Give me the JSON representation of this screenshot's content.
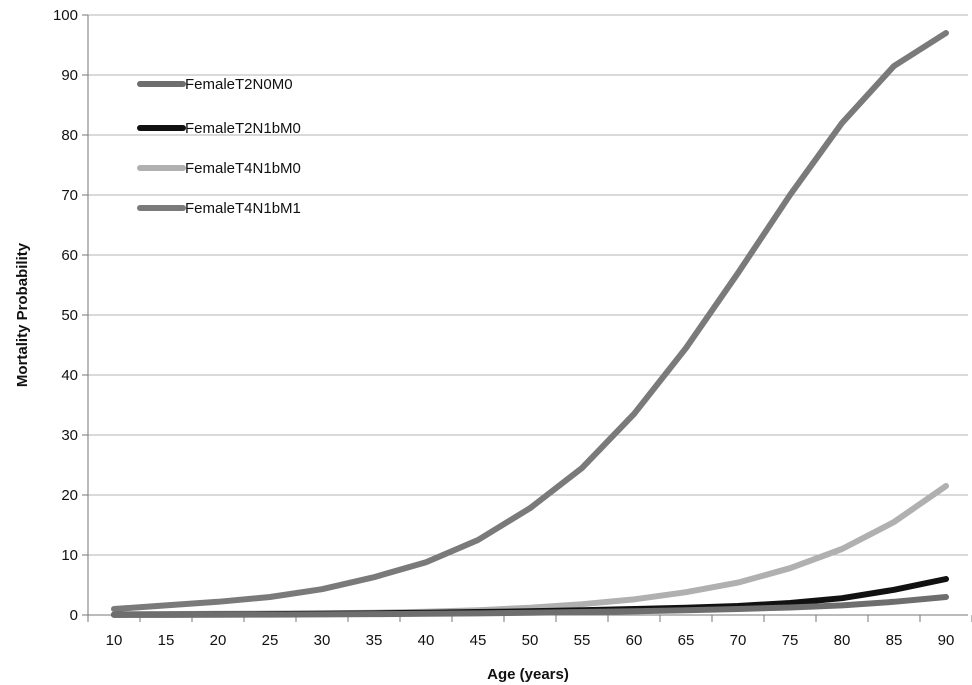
{
  "chart_data": {
    "type": "line",
    "title": "",
    "xlabel": "Age (years)",
    "ylabel": "Mortality Probability",
    "x": [
      10,
      15,
      20,
      25,
      30,
      35,
      40,
      45,
      50,
      55,
      60,
      65,
      70,
      75,
      80,
      85,
      90
    ],
    "xlim": [
      10,
      90
    ],
    "ylim": [
      0,
      100
    ],
    "yticks": [
      0,
      10,
      20,
      30,
      40,
      50,
      60,
      70,
      80,
      90,
      100
    ],
    "grid": "horizontal",
    "legend_position": "top-left",
    "series": [
      {
        "name": "FemaleT2N0M0",
        "color": "#6e6e6e",
        "values": [
          0.02,
          0.03,
          0.05,
          0.07,
          0.1,
          0.14,
          0.2,
          0.28,
          0.38,
          0.5,
          0.62,
          0.8,
          1.0,
          1.25,
          1.6,
          2.2,
          3.0
        ]
      },
      {
        "name": "FemaleT2N1bM0",
        "color": "#111111",
        "values": [
          0.05,
          0.07,
          0.1,
          0.14,
          0.2,
          0.28,
          0.38,
          0.5,
          0.62,
          0.8,
          1.0,
          1.2,
          1.5,
          2.0,
          2.8,
          4.2,
          6.0
        ]
      },
      {
        "name": "FemaleT4N1bM0",
        "color": "#b0b0b0",
        "values": [
          0.1,
          0.14,
          0.2,
          0.25,
          0.3,
          0.38,
          0.55,
          0.8,
          1.2,
          1.8,
          2.6,
          3.8,
          5.4,
          7.8,
          11.0,
          15.5,
          21.5
        ]
      },
      {
        "name": "FemaleT4N1bM1",
        "color": "#7a7a7a",
        "values": [
          1.0,
          1.6,
          2.2,
          3.0,
          4.3,
          6.3,
          8.8,
          12.5,
          17.8,
          24.5,
          33.5,
          44.5,
          57.0,
          70.0,
          82.0,
          91.5,
          97.0
        ]
      }
    ]
  }
}
